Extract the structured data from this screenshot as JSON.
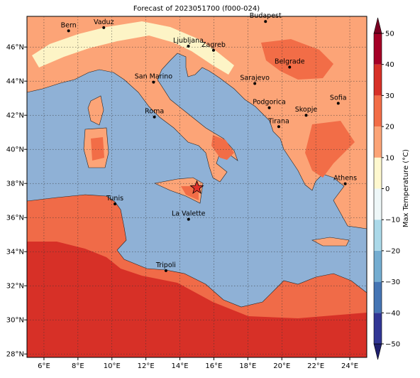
{
  "chart_data": {
    "type": "map",
    "title": "Forecast of 2023051700 (f000-024)",
    "xlim": [
      5,
      25
    ],
    "ylim": [
      27.8,
      47.8
    ],
    "xticks": [
      {
        "value": 6,
        "label": "6°E"
      },
      {
        "value": 8,
        "label": "8°E"
      },
      {
        "value": 10,
        "label": "10°E"
      },
      {
        "value": 12,
        "label": "12°E"
      },
      {
        "value": 14,
        "label": "14°E"
      },
      {
        "value": 16,
        "label": "16°E"
      },
      {
        "value": 18,
        "label": "18°E"
      },
      {
        "value": 20,
        "label": "20°E"
      },
      {
        "value": 22,
        "label": "22°E"
      },
      {
        "value": 24,
        "label": "24°E"
      }
    ],
    "yticks": [
      {
        "value": 28,
        "label": "28°N"
      },
      {
        "value": 30,
        "label": "30°N"
      },
      {
        "value": 32,
        "label": "32°N"
      },
      {
        "value": 34,
        "label": "34°N"
      },
      {
        "value": 36,
        "label": "36°N"
      },
      {
        "value": 38,
        "label": "38°N"
      },
      {
        "value": 40,
        "label": "40°N"
      },
      {
        "value": 42,
        "label": "42°N"
      },
      {
        "value": 44,
        "label": "44°N"
      },
      {
        "value": 46,
        "label": "46°N"
      }
    ],
    "grid": true,
    "cities": [
      {
        "name": "Bern",
        "lon": 7.45,
        "lat": 46.95
      },
      {
        "name": "Vaduz",
        "lon": 9.52,
        "lat": 47.14
      },
      {
        "name": "Ljubljana",
        "lon": 14.5,
        "lat": 46.05
      },
      {
        "name": "Zagreb",
        "lon": 15.98,
        "lat": 45.81
      },
      {
        "name": "Budapest",
        "lon": 19.04,
        "lat": 47.5
      },
      {
        "name": "Belgrade",
        "lon": 20.46,
        "lat": 44.82
      },
      {
        "name": "San Marino",
        "lon": 12.45,
        "lat": 43.94
      },
      {
        "name": "Sarajevo",
        "lon": 18.41,
        "lat": 43.86
      },
      {
        "name": "Sofia",
        "lon": 23.32,
        "lat": 42.7
      },
      {
        "name": "Podgorica",
        "lon": 19.26,
        "lat": 42.44
      },
      {
        "name": "Roma",
        "lon": 12.5,
        "lat": 41.9
      },
      {
        "name": "Skopje",
        "lon": 21.43,
        "lat": 42.0
      },
      {
        "name": "Tirana",
        "lon": 19.82,
        "lat": 41.33
      },
      {
        "name": "Athens",
        "lon": 23.73,
        "lat": 37.98
      },
      {
        "name": "Tunis",
        "lon": 10.18,
        "lat": 36.8
      },
      {
        "name": "La Valette",
        "lon": 14.51,
        "lat": 35.9
      },
      {
        "name": "Tripoli",
        "lon": 13.18,
        "lat": 32.89
      }
    ],
    "marker": {
      "lon": 15.0,
      "lat": 37.75,
      "color": "#e0302a"
    },
    "colorbar": {
      "label": "Max Temperature (°C)",
      "ticks": [
        {
          "value": -50,
          "label": "−50"
        },
        {
          "value": -40,
          "label": "−40"
        },
        {
          "value": -30,
          "label": "−30"
        },
        {
          "value": -20,
          "label": "−20"
        },
        {
          "value": -10,
          "label": "−10"
        },
        0,
        10,
        20,
        30,
        40,
        50
      ],
      "colors": [
        "#313695",
        "#4575b4",
        "#74add1",
        "#abd9e9",
        "#eef7f8",
        "#fef8cf",
        "#fca477",
        "#f26d47",
        "#d73027",
        "#a50026"
      ],
      "under": "#1f1f6e",
      "over": "#7a0022"
    }
  }
}
